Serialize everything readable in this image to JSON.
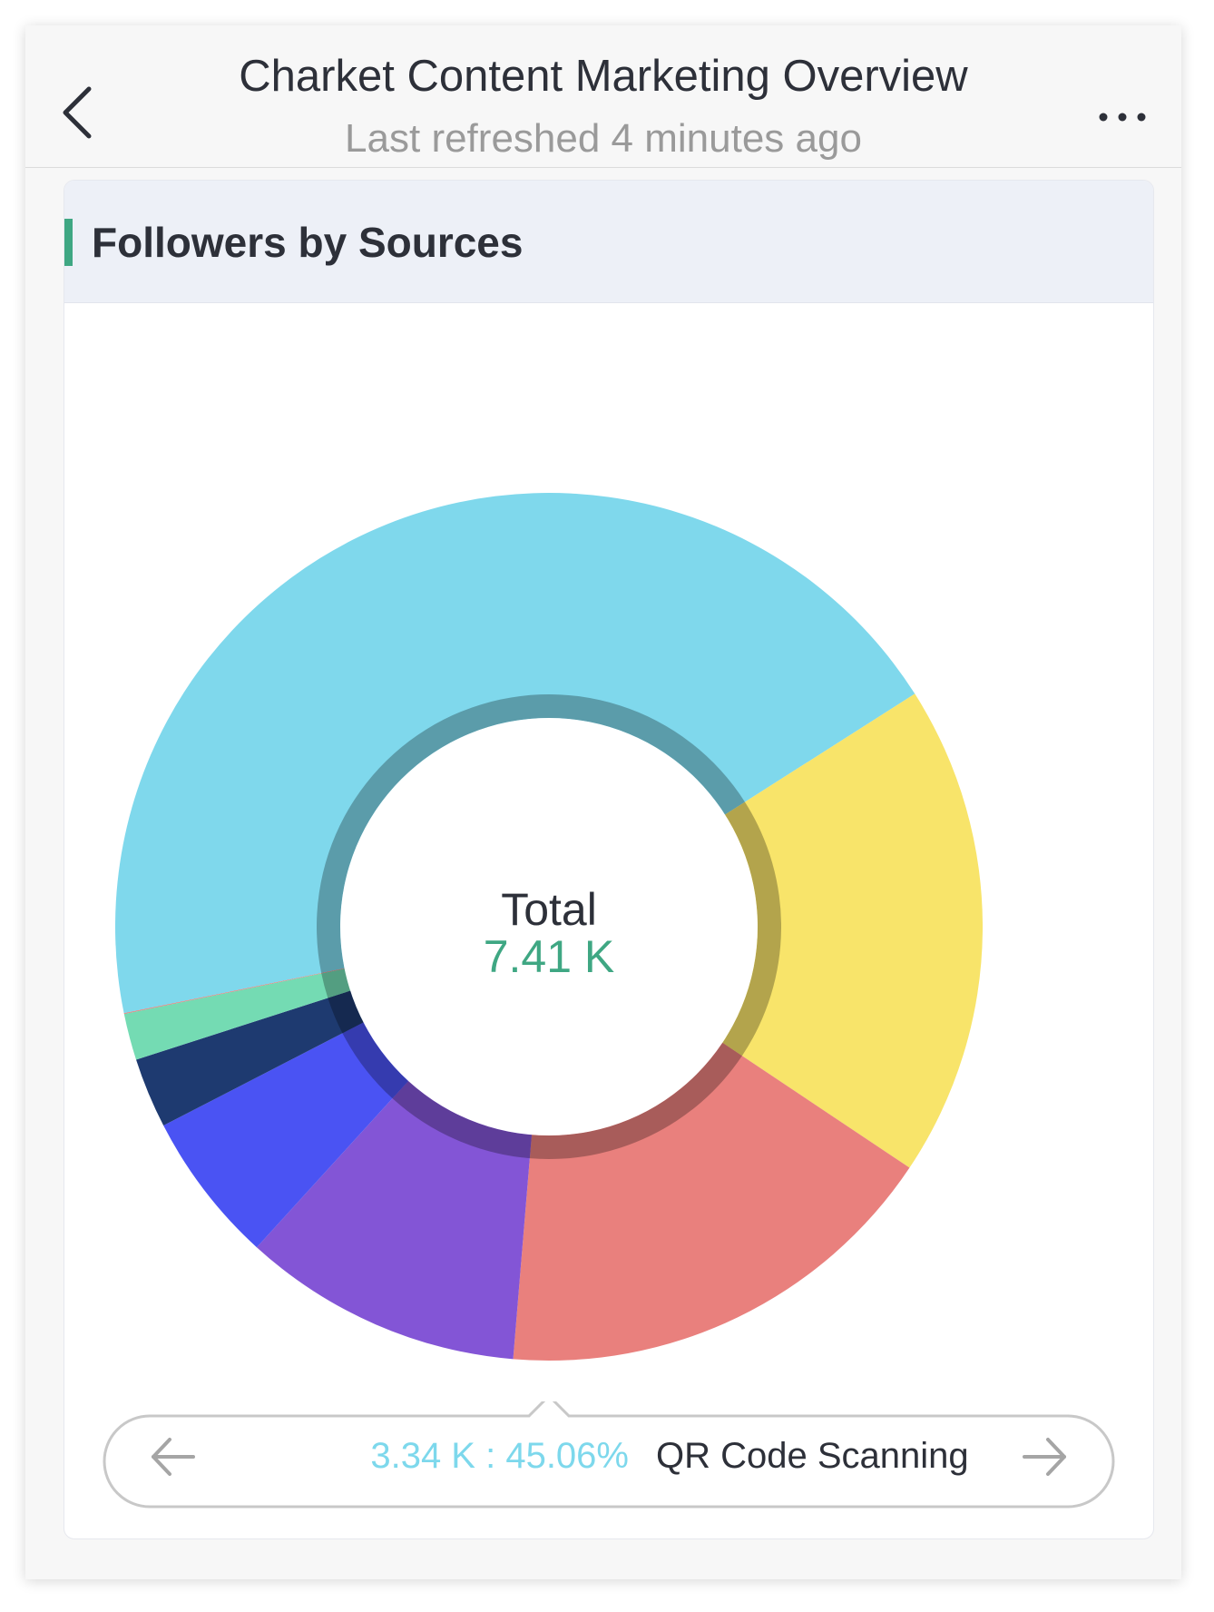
{
  "header": {
    "title": "Charket Content Marketing Overview",
    "subtitle": "Last refreshed 4 minutes ago",
    "back_icon": "chevron-left-icon",
    "more_icon": "ellipsis-icon"
  },
  "card": {
    "title": "Followers by Sources",
    "accent_color": "#3fa783"
  },
  "chart_data": {
    "type": "pie",
    "variant": "donut",
    "center_label": "Total",
    "center_value": "7.41 K",
    "center_value_color": "#3fa783",
    "slices": [
      {
        "value": 45.06,
        "color": "#7fd8ec"
      },
      {
        "value": 18.76,
        "color": "#f8e46a"
      },
      {
        "value": 17.28,
        "color": "#e9807d"
      },
      {
        "value": 10.66,
        "color": "#8355d6"
      },
      {
        "value": 5.77,
        "color": "#4a53f3"
      },
      {
        "value": 2.67,
        "color": "#1e3a70"
      },
      {
        "value": 1.77,
        "color": "#74dbb3"
      },
      {
        "value": 0.03,
        "color": "#e9807d"
      }
    ],
    "selected_index": 0
  },
  "legend": {
    "value_text": "3.34 K : 45.06%",
    "name_text": "QR Code Scanning",
    "prev_icon": "arrow-left-icon",
    "next_icon": "arrow-right-icon"
  }
}
